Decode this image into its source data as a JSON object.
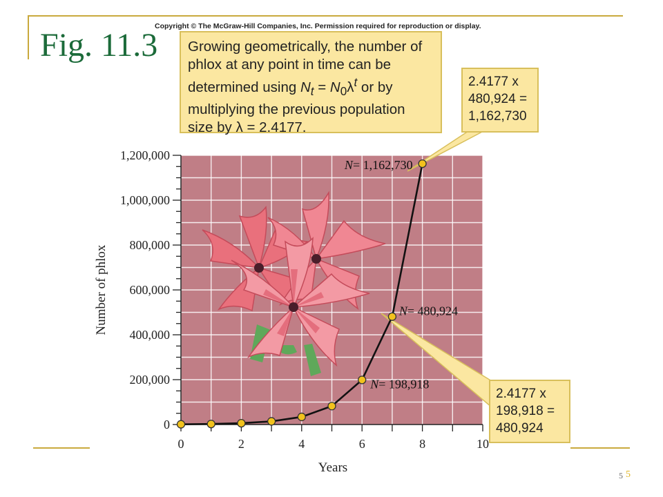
{
  "slide": {
    "title": "Fig. 11.3",
    "copyright": "Copyright © The McGraw-Hill Companies, Inc. Permission required for reproduction or display.",
    "page_number": "5",
    "page_number_accent": "5",
    "accent_color": "#c9a93c",
    "title_color": "#1c6b3a"
  },
  "callouts": {
    "main": {
      "line1": "Growing geometrically, the number of",
      "line2": "phlox at any point in time can be",
      "line3_pre": "determined using ",
      "formula_N": "N",
      "formula_t": "t",
      "formula_eq": " = ",
      "formula_N0": "N",
      "formula_0": "0",
      "formula_lambda": "λ",
      "formula_exp": "t",
      "line3_post": " or by",
      "line4": "multiplying the previous population",
      "line5": "size by λ = 2.4177."
    },
    "top": {
      "line1": "2.4177 x",
      "line2": "480,924 =",
      "line3": "1,162,730"
    },
    "bottom": {
      "line1": "2.4177 x",
      "line2": "198,918 =",
      "line3": "480,924"
    }
  },
  "chart_data": {
    "type": "line",
    "xlabel": "Years",
    "ylabel": "Number of phlox",
    "xlim": [
      0,
      10
    ],
    "ylim": [
      0,
      1200000
    ],
    "x_ticks": [
      0,
      1,
      2,
      3,
      4,
      5,
      6,
      7,
      8,
      9,
      10
    ],
    "x_tick_labels": [
      "0",
      "2",
      "4",
      "6",
      "8",
      "10"
    ],
    "x_tick_label_values": [
      0,
      2,
      4,
      6,
      8,
      10
    ],
    "y_ticks": [
      0,
      200000,
      400000,
      600000,
      800000,
      1000000,
      1200000
    ],
    "y_tick_labels": [
      "0",
      "200,000",
      "400,000",
      "600,000",
      "800,000",
      "1,000,000",
      "1,200,000"
    ],
    "grid": true,
    "background_color": "#c07e86",
    "marker_color": "#f2c21d",
    "series": [
      {
        "x": [
          0,
          1,
          2,
          3,
          4,
          5,
          6,
          7,
          8
        ],
        "y": [
          996,
          2408,
          5821,
          14074,
          34028,
          82272,
          198918,
          480924,
          1162730
        ]
      }
    ],
    "annotations": [
      {
        "point_index": 8,
        "N": "N",
        "text": "= 1,162,730"
      },
      {
        "point_index": 7,
        "N": "N",
        "text": "= 480,924"
      },
      {
        "point_index": 6,
        "N": "N",
        "text": "= 198,918"
      }
    ]
  }
}
